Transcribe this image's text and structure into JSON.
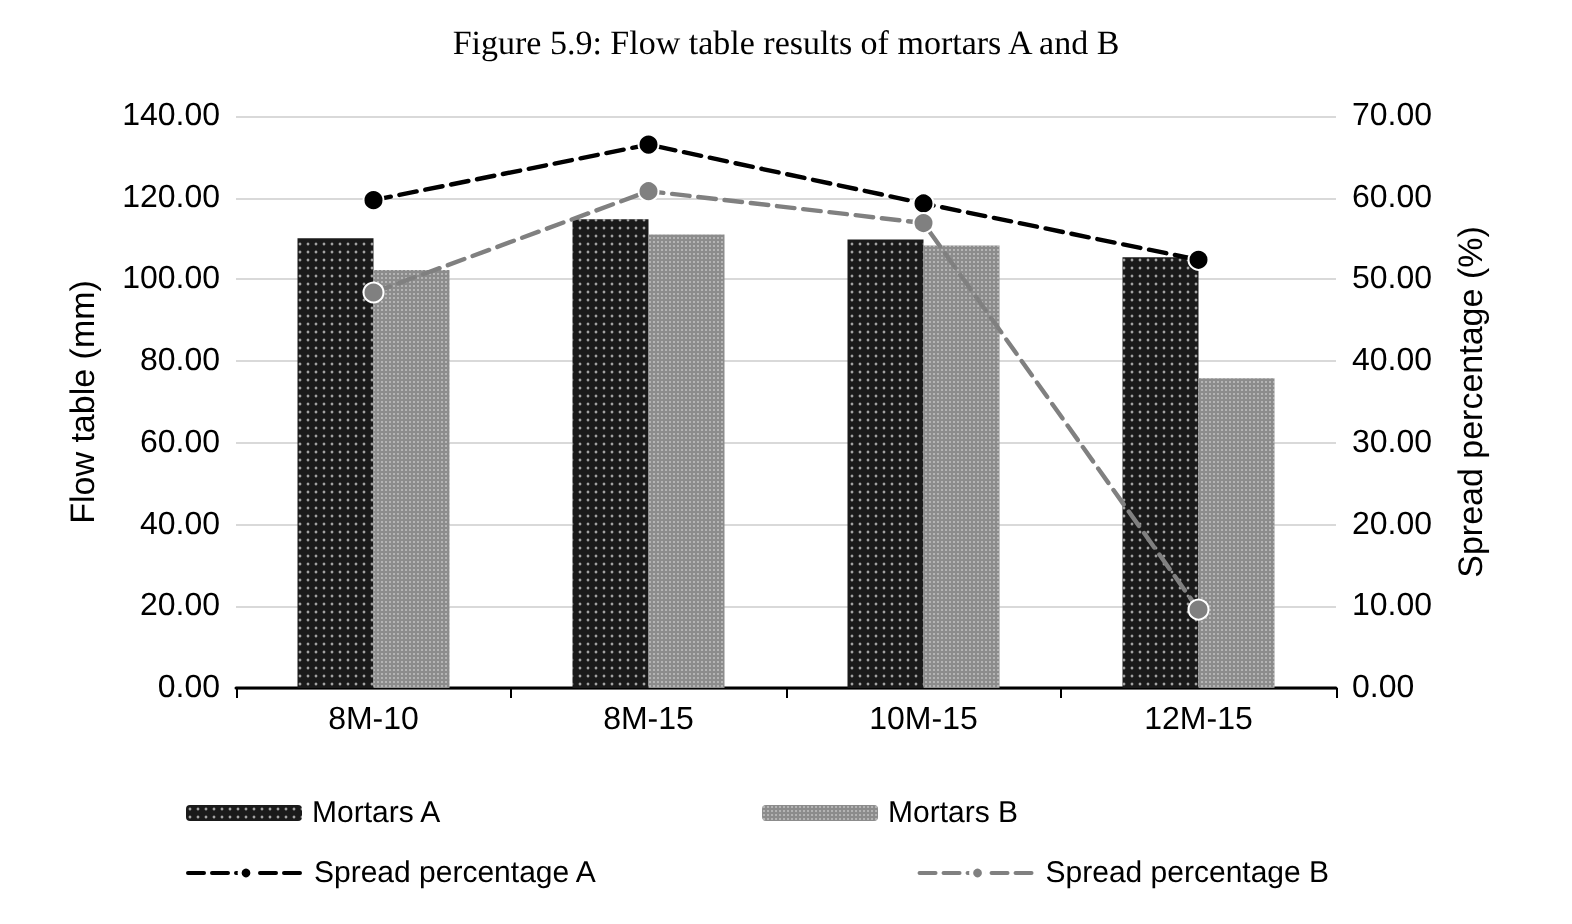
{
  "chart_data": {
    "type": "bar",
    "title": "Figure 5.9: Flow table results of mortars A and B",
    "ylabel": "Flow table (mm)",
    "y2label": "Spread percentage (%)",
    "categories": [
      "8M-10",
      "8M-15",
      "10M-15",
      "12M-15"
    ],
    "series": [
      {
        "name": "Mortars A",
        "color": "#1a1a1a",
        "values": [
          110.1,
          114.7,
          109.8,
          105.4
        ]
      },
      {
        "name": "Mortars B",
        "color": "#8c8c8c",
        "values": [
          102.3,
          111.0,
          108.3,
          75.8
        ]
      },
      {
        "name": "Spread percentage A",
        "type": "line",
        "axis": "y2",
        "color": "#000000",
        "line_style": "dashed",
        "marker": "circle",
        "values": [
          59.7,
          66.5,
          59.3,
          52.4
        ]
      },
      {
        "name": "Spread percentage B",
        "type": "line",
        "axis": "y2",
        "color": "#808080",
        "line_style": "dashed",
        "marker": "circle",
        "values": [
          48.4,
          60.8,
          56.9,
          9.6
        ]
      }
    ],
    "ylim": [
      0,
      140
    ],
    "yticks": [
      {
        "value": 0,
        "label": "0.00"
      },
      {
        "value": 20,
        "label": "20.00"
      },
      {
        "value": 40,
        "label": "40.00"
      },
      {
        "value": 60,
        "label": "60.00"
      },
      {
        "value": 80,
        "label": "80.00"
      },
      {
        "value": 100,
        "label": "100.00"
      },
      {
        "value": 120,
        "label": "120.00"
      },
      {
        "value": 140,
        "label": "140.00"
      }
    ],
    "y2lim": [
      0,
      70
    ],
    "y2ticks": [
      {
        "value": 0,
        "label": "0.00"
      },
      {
        "value": 10,
        "label": "10.00"
      },
      {
        "value": 20,
        "label": "20.00"
      },
      {
        "value": 30,
        "label": "30.00"
      },
      {
        "value": 40,
        "label": "40.00"
      },
      {
        "value": 50,
        "label": "50.00"
      },
      {
        "value": 60,
        "label": "60.00"
      },
      {
        "value": 70,
        "label": "70.00"
      }
    ],
    "grid": "y",
    "legend": "bottom"
  }
}
